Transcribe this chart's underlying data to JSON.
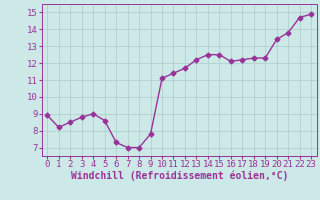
{
  "x": [
    0,
    1,
    2,
    3,
    4,
    5,
    6,
    7,
    8,
    9,
    10,
    11,
    12,
    13,
    14,
    15,
    16,
    17,
    18,
    19,
    20,
    21,
    22,
    23
  ],
  "y": [
    8.9,
    8.2,
    8.5,
    8.8,
    9.0,
    8.6,
    7.3,
    7.0,
    7.0,
    7.8,
    11.1,
    11.4,
    11.7,
    12.2,
    12.5,
    12.5,
    12.1,
    12.2,
    12.3,
    12.3,
    13.4,
    13.8,
    14.7,
    14.9
  ],
  "line_color": "#993399",
  "marker": "D",
  "markersize": 2.5,
  "linewidth": 1.0,
  "background_color": "#cce9e8",
  "grid_color": "#aacccc",
  "xlabel": "Windchill (Refroidissement éolien,°C)",
  "xlabel_fontsize": 7,
  "tick_fontsize": 6.5,
  "xlim": [
    -0.5,
    23.5
  ],
  "ylim": [
    6.5,
    15.5
  ],
  "yticks": [
    7,
    8,
    9,
    10,
    11,
    12,
    13,
    14,
    15
  ],
  "xticks": [
    0,
    1,
    2,
    3,
    4,
    5,
    6,
    7,
    8,
    9,
    10,
    11,
    12,
    13,
    14,
    15,
    16,
    17,
    18,
    19,
    20,
    21,
    22,
    23
  ]
}
